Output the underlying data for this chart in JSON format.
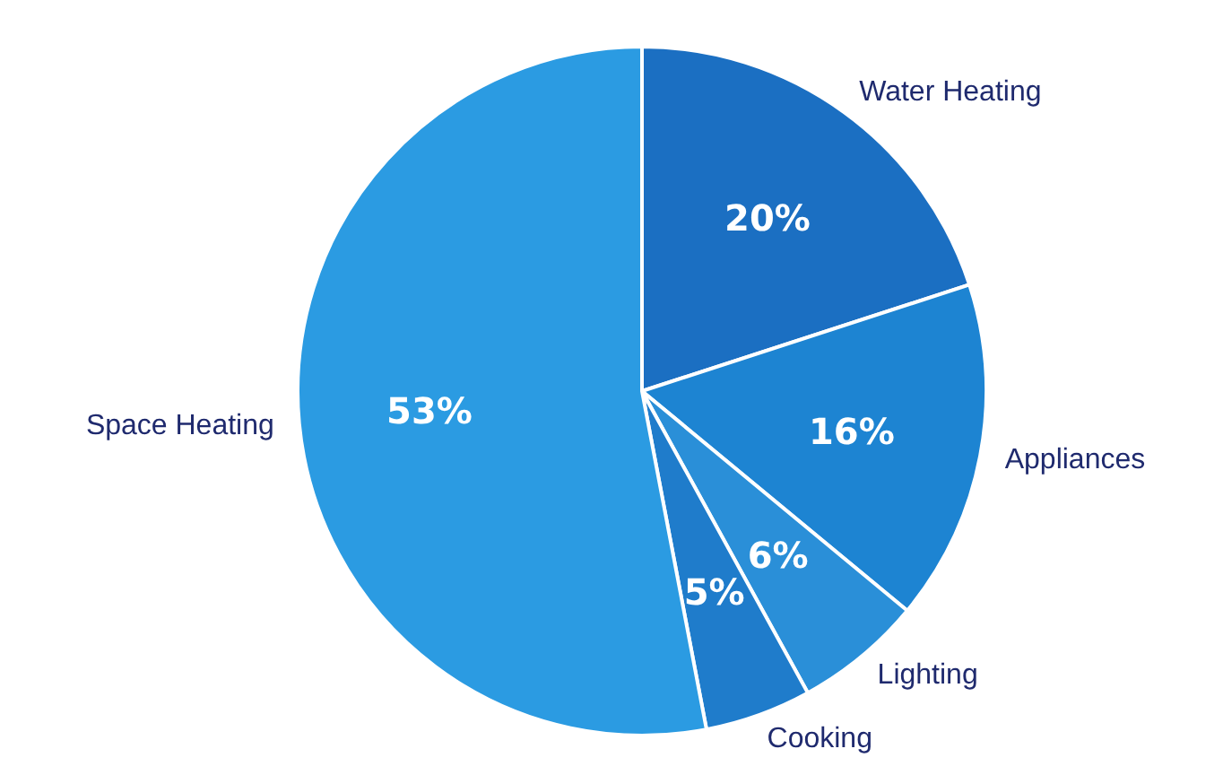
{
  "chart_data": {
    "type": "pie",
    "categories": [
      "Water Heating",
      "Appliances",
      "Lighting",
      "Cooking",
      "Space Heating"
    ],
    "values": [
      20,
      16,
      6,
      5,
      53
    ],
    "value_labels": [
      "20%",
      "16%",
      "6%",
      "5%",
      "53%"
    ],
    "colors": [
      "#1b6fc2",
      "#1d84d2",
      "#2a8fd8",
      "#1f7ccb",
      "#2b9be2"
    ],
    "legend": false
  }
}
